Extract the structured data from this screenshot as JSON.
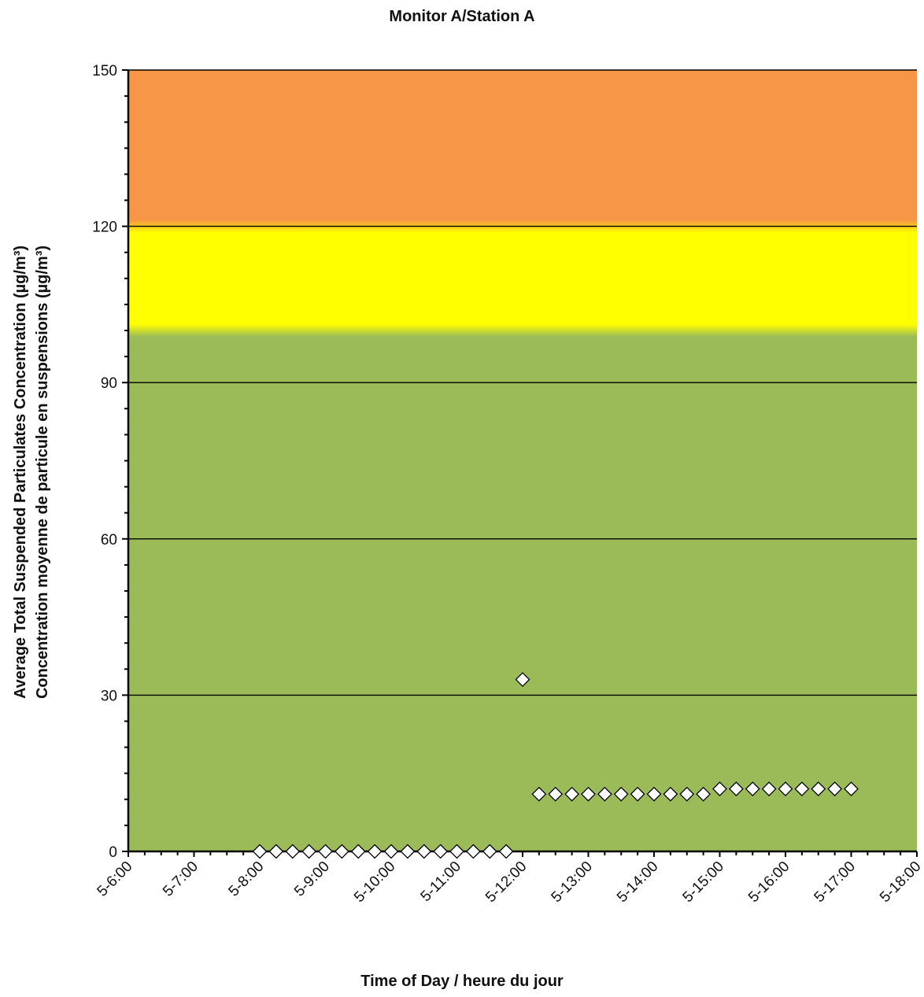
{
  "chart_data": {
    "type": "scatter",
    "title": "Monitor A/Station A",
    "xlabel": "Time of Day / heure du jour",
    "ylabel_line1": "Average Total Suspended Particulates Concentration (µg/m³)",
    "ylabel_line2": "Concentration moyenne de particule en suspensions (µg/m³)",
    "xlim": [
      6,
      18
    ],
    "ylim": [
      0,
      150
    ],
    "yticks": [
      0,
      30,
      60,
      90,
      120,
      150
    ],
    "xticks": [
      6,
      7,
      8,
      9,
      10,
      11,
      12,
      13,
      14,
      15,
      16,
      17,
      18
    ],
    "xtick_labels": [
      "5-6:00",
      "5-7:00",
      "5-8:00",
      "5-9:00",
      "5-10:00",
      "5-11:00",
      "5-12:00",
      "5-13:00",
      "5-14:00",
      "5-15:00",
      "5-16:00",
      "5-17:00",
      "5-18:00"
    ],
    "grid": "horizontal",
    "bands": [
      {
        "from": 0,
        "to": 100,
        "color": "#9bbb59"
      },
      {
        "from": 100,
        "to": 120,
        "color": "#ffff00"
      },
      {
        "from": 120,
        "to": 150,
        "color": "#f79646"
      }
    ],
    "series": [
      {
        "marker": "diamond",
        "color": "#ffffff",
        "x": [
          8.0,
          8.25,
          8.5,
          8.75,
          9.0,
          9.25,
          9.5,
          9.75,
          10.0,
          10.25,
          10.5,
          10.75,
          11.0,
          11.25,
          11.5,
          11.75,
          12.0,
          12.25,
          12.5,
          12.75,
          13.0,
          13.25,
          13.5,
          13.75,
          14.0,
          14.25,
          14.5,
          14.75,
          15.0,
          15.25,
          15.5,
          15.75,
          16.0,
          16.25,
          16.5,
          16.75,
          17.0
        ],
        "y": [
          0,
          0,
          0,
          0,
          0,
          0,
          0,
          0,
          0,
          0,
          0,
          0,
          0,
          0,
          0,
          0,
          33,
          11,
          11,
          11,
          11,
          11,
          11,
          11,
          11,
          11,
          11,
          11,
          12,
          12,
          12,
          12,
          12,
          12,
          12,
          12,
          12
        ]
      }
    ]
  }
}
